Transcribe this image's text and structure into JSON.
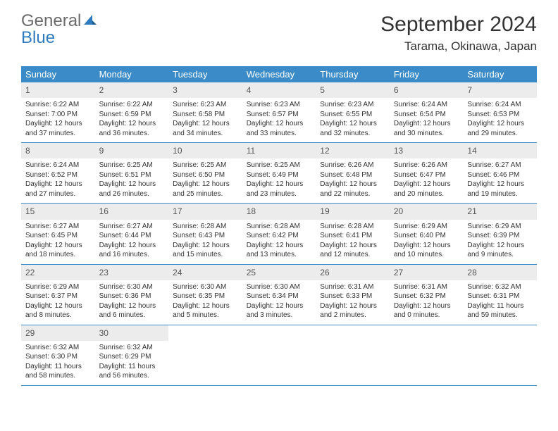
{
  "brand": {
    "name_part1": "General",
    "name_part2": "Blue",
    "color_gray": "#6b6b6b",
    "color_blue": "#2f7bbf"
  },
  "header": {
    "month_title": "September 2024",
    "location": "Tarama, Okinawa, Japan"
  },
  "style": {
    "header_bg": "#3b8bc8",
    "daynum_bg": "#ececec",
    "text_color": "#333333",
    "row_border": "#3b8bc8"
  },
  "weekdays": [
    "Sunday",
    "Monday",
    "Tuesday",
    "Wednesday",
    "Thursday",
    "Friday",
    "Saturday"
  ],
  "weeks": [
    [
      {
        "n": "1",
        "sr": "6:22 AM",
        "ss": "7:00 PM",
        "dl1": "Daylight: 12 hours",
        "dl2": "and 37 minutes."
      },
      {
        "n": "2",
        "sr": "6:22 AM",
        "ss": "6:59 PM",
        "dl1": "Daylight: 12 hours",
        "dl2": "and 36 minutes."
      },
      {
        "n": "3",
        "sr": "6:23 AM",
        "ss": "6:58 PM",
        "dl1": "Daylight: 12 hours",
        "dl2": "and 34 minutes."
      },
      {
        "n": "4",
        "sr": "6:23 AM",
        "ss": "6:57 PM",
        "dl1": "Daylight: 12 hours",
        "dl2": "and 33 minutes."
      },
      {
        "n": "5",
        "sr": "6:23 AM",
        "ss": "6:55 PM",
        "dl1": "Daylight: 12 hours",
        "dl2": "and 32 minutes."
      },
      {
        "n": "6",
        "sr": "6:24 AM",
        "ss": "6:54 PM",
        "dl1": "Daylight: 12 hours",
        "dl2": "and 30 minutes."
      },
      {
        "n": "7",
        "sr": "6:24 AM",
        "ss": "6:53 PM",
        "dl1": "Daylight: 12 hours",
        "dl2": "and 29 minutes."
      }
    ],
    [
      {
        "n": "8",
        "sr": "6:24 AM",
        "ss": "6:52 PM",
        "dl1": "Daylight: 12 hours",
        "dl2": "and 27 minutes."
      },
      {
        "n": "9",
        "sr": "6:25 AM",
        "ss": "6:51 PM",
        "dl1": "Daylight: 12 hours",
        "dl2": "and 26 minutes."
      },
      {
        "n": "10",
        "sr": "6:25 AM",
        "ss": "6:50 PM",
        "dl1": "Daylight: 12 hours",
        "dl2": "and 25 minutes."
      },
      {
        "n": "11",
        "sr": "6:25 AM",
        "ss": "6:49 PM",
        "dl1": "Daylight: 12 hours",
        "dl2": "and 23 minutes."
      },
      {
        "n": "12",
        "sr": "6:26 AM",
        "ss": "6:48 PM",
        "dl1": "Daylight: 12 hours",
        "dl2": "and 22 minutes."
      },
      {
        "n": "13",
        "sr": "6:26 AM",
        "ss": "6:47 PM",
        "dl1": "Daylight: 12 hours",
        "dl2": "and 20 minutes."
      },
      {
        "n": "14",
        "sr": "6:27 AM",
        "ss": "6:46 PM",
        "dl1": "Daylight: 12 hours",
        "dl2": "and 19 minutes."
      }
    ],
    [
      {
        "n": "15",
        "sr": "6:27 AM",
        "ss": "6:45 PM",
        "dl1": "Daylight: 12 hours",
        "dl2": "and 18 minutes."
      },
      {
        "n": "16",
        "sr": "6:27 AM",
        "ss": "6:44 PM",
        "dl1": "Daylight: 12 hours",
        "dl2": "and 16 minutes."
      },
      {
        "n": "17",
        "sr": "6:28 AM",
        "ss": "6:43 PM",
        "dl1": "Daylight: 12 hours",
        "dl2": "and 15 minutes."
      },
      {
        "n": "18",
        "sr": "6:28 AM",
        "ss": "6:42 PM",
        "dl1": "Daylight: 12 hours",
        "dl2": "and 13 minutes."
      },
      {
        "n": "19",
        "sr": "6:28 AM",
        "ss": "6:41 PM",
        "dl1": "Daylight: 12 hours",
        "dl2": "and 12 minutes."
      },
      {
        "n": "20",
        "sr": "6:29 AM",
        "ss": "6:40 PM",
        "dl1": "Daylight: 12 hours",
        "dl2": "and 10 minutes."
      },
      {
        "n": "21",
        "sr": "6:29 AM",
        "ss": "6:39 PM",
        "dl1": "Daylight: 12 hours",
        "dl2": "and 9 minutes."
      }
    ],
    [
      {
        "n": "22",
        "sr": "6:29 AM",
        "ss": "6:37 PM",
        "dl1": "Daylight: 12 hours",
        "dl2": "and 8 minutes."
      },
      {
        "n": "23",
        "sr": "6:30 AM",
        "ss": "6:36 PM",
        "dl1": "Daylight: 12 hours",
        "dl2": "and 6 minutes."
      },
      {
        "n": "24",
        "sr": "6:30 AM",
        "ss": "6:35 PM",
        "dl1": "Daylight: 12 hours",
        "dl2": "and 5 minutes."
      },
      {
        "n": "25",
        "sr": "6:30 AM",
        "ss": "6:34 PM",
        "dl1": "Daylight: 12 hours",
        "dl2": "and 3 minutes."
      },
      {
        "n": "26",
        "sr": "6:31 AM",
        "ss": "6:33 PM",
        "dl1": "Daylight: 12 hours",
        "dl2": "and 2 minutes."
      },
      {
        "n": "27",
        "sr": "6:31 AM",
        "ss": "6:32 PM",
        "dl1": "Daylight: 12 hours",
        "dl2": "and 0 minutes."
      },
      {
        "n": "28",
        "sr": "6:32 AM",
        "ss": "6:31 PM",
        "dl1": "Daylight: 11 hours",
        "dl2": "and 59 minutes."
      }
    ],
    [
      {
        "n": "29",
        "sr": "6:32 AM",
        "ss": "6:30 PM",
        "dl1": "Daylight: 11 hours",
        "dl2": "and 58 minutes."
      },
      {
        "n": "30",
        "sr": "6:32 AM",
        "ss": "6:29 PM",
        "dl1": "Daylight: 11 hours",
        "dl2": "and 56 minutes."
      },
      null,
      null,
      null,
      null,
      null
    ]
  ],
  "labels": {
    "sunrise_prefix": "Sunrise: ",
    "sunset_prefix": "Sunset: "
  }
}
